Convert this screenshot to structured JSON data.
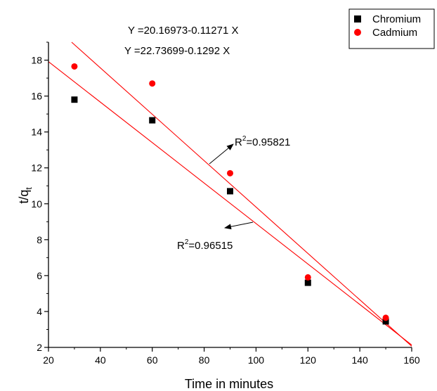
{
  "chart_data": {
    "type": "scatter",
    "xlabel": "Time in minutes",
    "ylabel": {
      "main": "t/q",
      "sub": "t"
    },
    "xlim": [
      20,
      160
    ],
    "ylim": [
      2,
      19
    ],
    "xticks": [
      20,
      40,
      60,
      80,
      100,
      120,
      140,
      160
    ],
    "yticks": [
      2,
      4,
      6,
      8,
      10,
      12,
      14,
      16,
      18
    ],
    "grid": false,
    "legend_position": "top-right",
    "series": [
      {
        "name": "Chromium",
        "marker": "square",
        "color": "#000000",
        "x": [
          30,
          60,
          90,
          120,
          150
        ],
        "y": [
          15.8,
          14.65,
          10.7,
          5.6,
          3.45
        ]
      },
      {
        "name": "Cadmium",
        "marker": "circle",
        "color": "#ff0000",
        "x": [
          30,
          60,
          90,
          120,
          150
        ],
        "y": [
          17.65,
          16.7,
          11.7,
          5.9,
          3.65
        ]
      }
    ],
    "fit_lines": [
      {
        "color": "#ff0000",
        "intercept": 20.16973,
        "slope": -0.11271
      },
      {
        "color": "#ff0000",
        "intercept": 22.73699,
        "slope": -0.1292
      }
    ],
    "annotations": {
      "equation_1": "Y =20.16973-0.11271 X",
      "equation_2": "Y =22.73699-0.1292 X",
      "r2_top": {
        "prefix": "R",
        "sup": "2",
        "value": "=0.95821"
      },
      "r2_bottom": {
        "prefix": "R",
        "sup": "2",
        "value": "=0.96515"
      }
    }
  }
}
